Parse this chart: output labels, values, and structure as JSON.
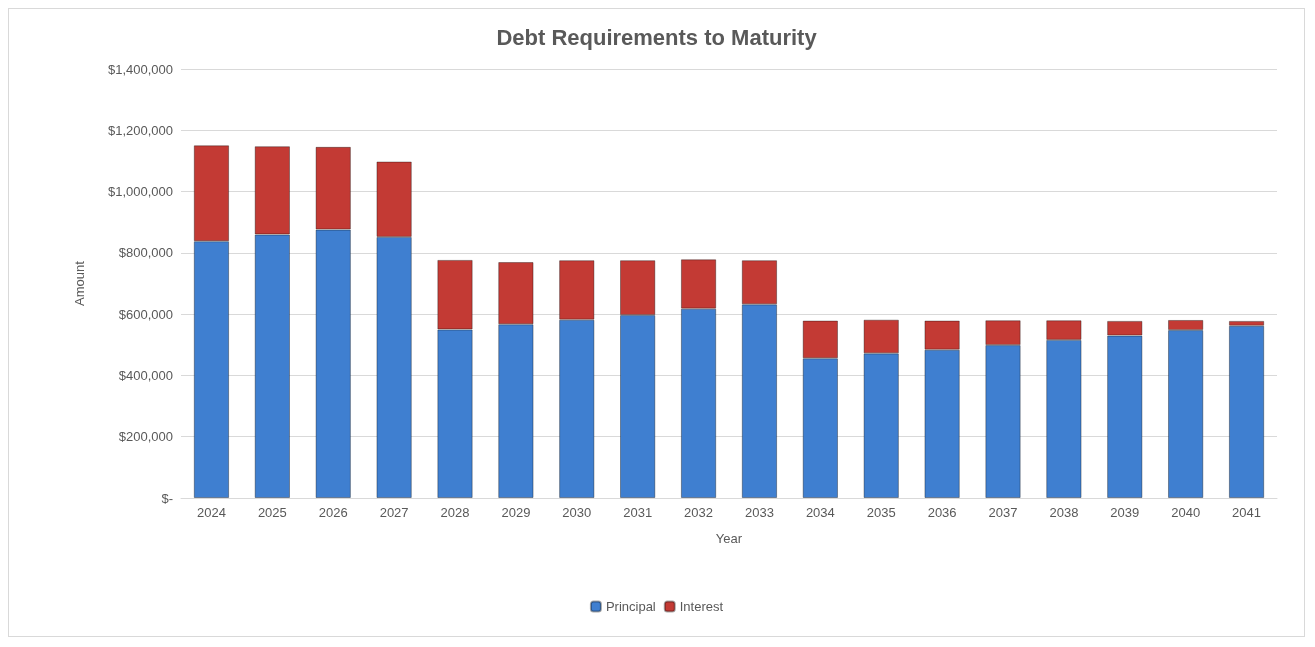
{
  "chart_data": {
    "type": "bar",
    "title": "Debt Requirements to Maturity",
    "xlabel": "Year",
    "ylabel": "Amount",
    "categories": [
      "2024",
      "2025",
      "2026",
      "2027",
      "2028",
      "2029",
      "2030",
      "2031",
      "2032",
      "2033",
      "2034",
      "2035",
      "2036",
      "2037",
      "2038",
      "2039",
      "2040",
      "2041"
    ],
    "series": [
      {
        "name": "Principal",
        "color": "#3f7fd0",
        "values": [
          838000,
          860000,
          876000,
          852000,
          550000,
          567000,
          582000,
          597000,
          618000,
          632000,
          456000,
          472000,
          484000,
          499000,
          516000,
          530000,
          548000,
          562000
        ]
      },
      {
        "name": "Interest",
        "color": "#c33a34",
        "values": [
          313000,
          288000,
          270000,
          246000,
          227000,
          203000,
          194000,
          179000,
          161000,
          144000,
          123000,
          110000,
          95000,
          81000,
          64000,
          48000,
          33000,
          16000
        ]
      }
    ],
    "stacked": true,
    "ylim": [
      0,
      1400000
    ],
    "yticks": [
      {
        "value": 0,
        "label": "$-"
      },
      {
        "value": 200000,
        "label": "$200,000"
      },
      {
        "value": 400000,
        "label": "$400,000"
      },
      {
        "value": 600000,
        "label": "$600,000"
      },
      {
        "value": 800000,
        "label": "$800,000"
      },
      {
        "value": 1000000,
        "label": "$1,000,000"
      },
      {
        "value": 1200000,
        "label": "$1,200,000"
      },
      {
        "value": 1400000,
        "label": "$1,400,000"
      }
    ],
    "grid": "y",
    "legend": "bottom"
  }
}
